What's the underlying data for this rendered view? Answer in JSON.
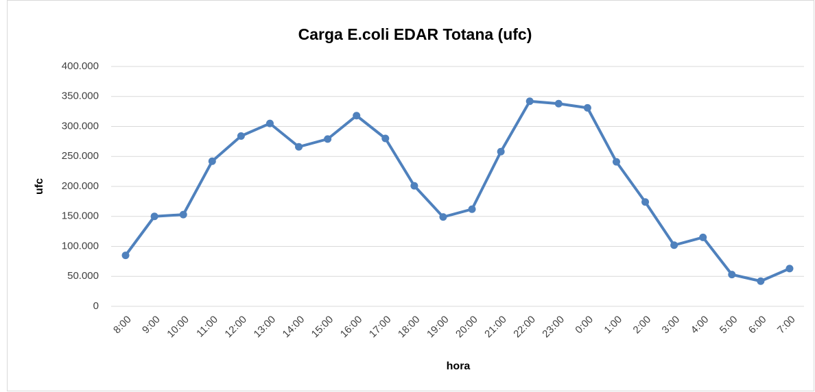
{
  "chart_data": {
    "type": "line",
    "title": "Carga E.coli EDAR Totana (ufc)",
    "x_label": "hora",
    "y_label": "ufc",
    "categories": [
      "8:00",
      "9:00",
      "10:00",
      "11:00",
      "12:00",
      "13:00",
      "14:00",
      "15:00",
      "16:00",
      "17:00",
      "18:00",
      "19:00",
      "20:00",
      "21:00",
      "22:00",
      "23:00",
      "0:00",
      "1:00",
      "2:00",
      "3:00",
      "4:00",
      "5:00",
      "6:00",
      "7:00"
    ],
    "series": [
      {
        "name": "ufc",
        "color": "#4f81bd",
        "values": [
          85000,
          150000,
          153000,
          242000,
          284000,
          305000,
          266000,
          279000,
          318000,
          280000,
          201000,
          149000,
          162000,
          258000,
          342000,
          338000,
          331000,
          241000,
          174000,
          102000,
          115000,
          53000,
          42000,
          63000
        ]
      }
    ],
    "ylim": [
      0,
      400000
    ],
    "yticks": [
      0,
      {
        "value": 50000,
        "label": "50.000"
      },
      {
        "value": 100000,
        "label": "100.000"
      },
      {
        "value": 150000,
        "label": "150.000"
      },
      {
        "value": 200000,
        "label": "200.000"
      },
      {
        "value": 250000,
        "label": "250.000"
      },
      {
        "value": 300000,
        "label": "300.000"
      },
      {
        "value": 350000,
        "label": "350.000"
      },
      {
        "value": 400000,
        "label": "400.000"
      }
    ],
    "grid": true
  }
}
